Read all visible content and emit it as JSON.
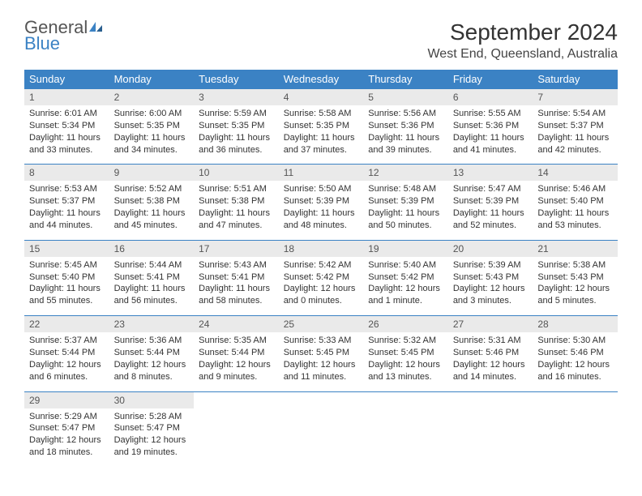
{
  "logo": {
    "word1": "General",
    "word2": "Blue"
  },
  "title": "September 2024",
  "location": "West End, Queensland, Australia",
  "dayNames": [
    "Sunday",
    "Monday",
    "Tuesday",
    "Wednesday",
    "Thursday",
    "Friday",
    "Saturday"
  ],
  "colors": {
    "headerBg": "#3b82c4",
    "headerText": "#ffffff",
    "dateBg": "#eaeaea",
    "border": "#3b82c4",
    "text": "#333333",
    "logoGray": "#555555",
    "logoBlue": "#3b82c4"
  },
  "fonts": {
    "title_pt": 28,
    "location_pt": 16,
    "dayHeader_pt": 13,
    "date_pt": 12,
    "info_pt": 11
  },
  "weeks": [
    [
      {
        "date": "1",
        "sunrise": "Sunrise: 6:01 AM",
        "sunset": "Sunset: 5:34 PM",
        "daylight": "Daylight: 11 hours and 33 minutes."
      },
      {
        "date": "2",
        "sunrise": "Sunrise: 6:00 AM",
        "sunset": "Sunset: 5:35 PM",
        "daylight": "Daylight: 11 hours and 34 minutes."
      },
      {
        "date": "3",
        "sunrise": "Sunrise: 5:59 AM",
        "sunset": "Sunset: 5:35 PM",
        "daylight": "Daylight: 11 hours and 36 minutes."
      },
      {
        "date": "4",
        "sunrise": "Sunrise: 5:58 AM",
        "sunset": "Sunset: 5:35 PM",
        "daylight": "Daylight: 11 hours and 37 minutes."
      },
      {
        "date": "5",
        "sunrise": "Sunrise: 5:56 AM",
        "sunset": "Sunset: 5:36 PM",
        "daylight": "Daylight: 11 hours and 39 minutes."
      },
      {
        "date": "6",
        "sunrise": "Sunrise: 5:55 AM",
        "sunset": "Sunset: 5:36 PM",
        "daylight": "Daylight: 11 hours and 41 minutes."
      },
      {
        "date": "7",
        "sunrise": "Sunrise: 5:54 AM",
        "sunset": "Sunset: 5:37 PM",
        "daylight": "Daylight: 11 hours and 42 minutes."
      }
    ],
    [
      {
        "date": "8",
        "sunrise": "Sunrise: 5:53 AM",
        "sunset": "Sunset: 5:37 PM",
        "daylight": "Daylight: 11 hours and 44 minutes."
      },
      {
        "date": "9",
        "sunrise": "Sunrise: 5:52 AM",
        "sunset": "Sunset: 5:38 PM",
        "daylight": "Daylight: 11 hours and 45 minutes."
      },
      {
        "date": "10",
        "sunrise": "Sunrise: 5:51 AM",
        "sunset": "Sunset: 5:38 PM",
        "daylight": "Daylight: 11 hours and 47 minutes."
      },
      {
        "date": "11",
        "sunrise": "Sunrise: 5:50 AM",
        "sunset": "Sunset: 5:39 PM",
        "daylight": "Daylight: 11 hours and 48 minutes."
      },
      {
        "date": "12",
        "sunrise": "Sunrise: 5:48 AM",
        "sunset": "Sunset: 5:39 PM",
        "daylight": "Daylight: 11 hours and 50 minutes."
      },
      {
        "date": "13",
        "sunrise": "Sunrise: 5:47 AM",
        "sunset": "Sunset: 5:39 PM",
        "daylight": "Daylight: 11 hours and 52 minutes."
      },
      {
        "date": "14",
        "sunrise": "Sunrise: 5:46 AM",
        "sunset": "Sunset: 5:40 PM",
        "daylight": "Daylight: 11 hours and 53 minutes."
      }
    ],
    [
      {
        "date": "15",
        "sunrise": "Sunrise: 5:45 AM",
        "sunset": "Sunset: 5:40 PM",
        "daylight": "Daylight: 11 hours and 55 minutes."
      },
      {
        "date": "16",
        "sunrise": "Sunrise: 5:44 AM",
        "sunset": "Sunset: 5:41 PM",
        "daylight": "Daylight: 11 hours and 56 minutes."
      },
      {
        "date": "17",
        "sunrise": "Sunrise: 5:43 AM",
        "sunset": "Sunset: 5:41 PM",
        "daylight": "Daylight: 11 hours and 58 minutes."
      },
      {
        "date": "18",
        "sunrise": "Sunrise: 5:42 AM",
        "sunset": "Sunset: 5:42 PM",
        "daylight": "Daylight: 12 hours and 0 minutes."
      },
      {
        "date": "19",
        "sunrise": "Sunrise: 5:40 AM",
        "sunset": "Sunset: 5:42 PM",
        "daylight": "Daylight: 12 hours and 1 minute."
      },
      {
        "date": "20",
        "sunrise": "Sunrise: 5:39 AM",
        "sunset": "Sunset: 5:43 PM",
        "daylight": "Daylight: 12 hours and 3 minutes."
      },
      {
        "date": "21",
        "sunrise": "Sunrise: 5:38 AM",
        "sunset": "Sunset: 5:43 PM",
        "daylight": "Daylight: 12 hours and 5 minutes."
      }
    ],
    [
      {
        "date": "22",
        "sunrise": "Sunrise: 5:37 AM",
        "sunset": "Sunset: 5:44 PM",
        "daylight": "Daylight: 12 hours and 6 minutes."
      },
      {
        "date": "23",
        "sunrise": "Sunrise: 5:36 AM",
        "sunset": "Sunset: 5:44 PM",
        "daylight": "Daylight: 12 hours and 8 minutes."
      },
      {
        "date": "24",
        "sunrise": "Sunrise: 5:35 AM",
        "sunset": "Sunset: 5:44 PM",
        "daylight": "Daylight: 12 hours and 9 minutes."
      },
      {
        "date": "25",
        "sunrise": "Sunrise: 5:33 AM",
        "sunset": "Sunset: 5:45 PM",
        "daylight": "Daylight: 12 hours and 11 minutes."
      },
      {
        "date": "26",
        "sunrise": "Sunrise: 5:32 AM",
        "sunset": "Sunset: 5:45 PM",
        "daylight": "Daylight: 12 hours and 13 minutes."
      },
      {
        "date": "27",
        "sunrise": "Sunrise: 5:31 AM",
        "sunset": "Sunset: 5:46 PM",
        "daylight": "Daylight: 12 hours and 14 minutes."
      },
      {
        "date": "28",
        "sunrise": "Sunrise: 5:30 AM",
        "sunset": "Sunset: 5:46 PM",
        "daylight": "Daylight: 12 hours and 16 minutes."
      }
    ],
    [
      {
        "date": "29",
        "sunrise": "Sunrise: 5:29 AM",
        "sunset": "Sunset: 5:47 PM",
        "daylight": "Daylight: 12 hours and 18 minutes."
      },
      {
        "date": "30",
        "sunrise": "Sunrise: 5:28 AM",
        "sunset": "Sunset: 5:47 PM",
        "daylight": "Daylight: 12 hours and 19 minutes."
      },
      null,
      null,
      null,
      null,
      null
    ]
  ]
}
